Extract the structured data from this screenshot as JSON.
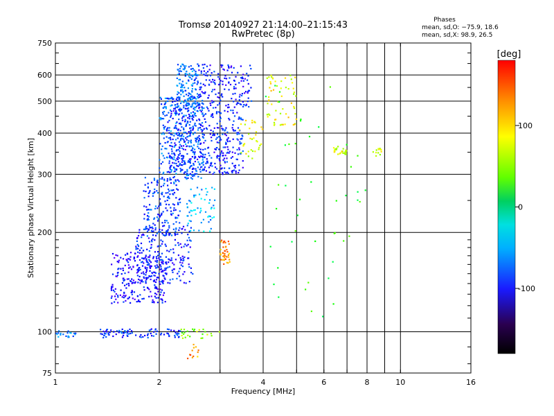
{
  "chart_data": {
    "type": "scatter",
    "title": "Tromsø 20140927 21:14:00–21:15:43",
    "subtitle": "RwPretec (8p)",
    "xlabel": "Frequency [MHz]",
    "ylabel": "Stationary phase Virtual Height [km]",
    "x_scale": "log",
    "y_scale": "log",
    "xlim": [
      1,
      16
    ],
    "ylim": [
      75,
      750
    ],
    "x_ticks": [
      1,
      2,
      4,
      6,
      8,
      10,
      16
    ],
    "x_minor_ticks": [
      3,
      5,
      7,
      9
    ],
    "y_ticks": [
      75,
      100,
      200,
      300,
      400,
      500,
      600,
      750
    ],
    "grid": true,
    "phases_box": {
      "title": "Phases",
      "line_o": "mean, sd,O: −75.9, 18.6",
      "line_x": "mean, sd,X:  98.9, 26.5"
    },
    "colorbar": {
      "label": "[deg]",
      "range": [
        -180,
        180
      ],
      "ticks": [
        -100,
        0,
        100
      ]
    },
    "series": [
      {
        "clusters": [
          {
            "x": [
              1.45,
              2.1
            ],
            "y": [
              122,
              175
            ],
            "phase": -105,
            "n": 260
          },
          {
            "x": [
              1.7,
              2.5
            ],
            "y": [
              140,
              210
            ],
            "phase": -95,
            "n": 200
          },
          {
            "x": [
              1.8,
              2.3
            ],
            "y": [
              195,
              295
            ],
            "phase": -85,
            "n": 180
          },
          {
            "x": [
              2.0,
              2.7
            ],
            "y": [
              290,
              520
            ],
            "phase": -75,
            "n": 320
          },
          {
            "x": [
              2.1,
              3.5
            ],
            "y": [
              300,
              480
            ],
            "phase": -95,
            "n": 420
          },
          {
            "x": [
              2.25,
              2.6
            ],
            "y": [
              480,
              650
            ],
            "phase": -70,
            "n": 130
          },
          {
            "x": [
              2.6,
              3.7
            ],
            "y": [
              480,
              650
            ],
            "phase": -100,
            "n": 160
          },
          {
            "x": [
              2.4,
              2.9
            ],
            "y": [
              200,
              280
            ],
            "phase": -50,
            "n": 60
          },
          {
            "x": [
              1.0,
              1.15
            ],
            "y": [
              96,
              101
            ],
            "phase": -70,
            "n": 20
          },
          {
            "x": [
              1.35,
              2.3
            ],
            "y": [
              96,
              102
            ],
            "phase": -90,
            "n": 90
          },
          {
            "x": [
              2.3,
              3.0
            ],
            "y": [
              95,
              102
            ],
            "phase": 80,
            "n": 25
          },
          {
            "x": [
              2.4,
              2.6
            ],
            "y": [
              82,
              92
            ],
            "phase": 140,
            "n": 12
          },
          {
            "x": [
              3.0,
              3.2
            ],
            "y": [
              160,
              190
            ],
            "phase": 140,
            "n": 40
          },
          {
            "x": [
              3.4,
              4.0
            ],
            "y": [
              330,
              440
            ],
            "phase": 100,
            "n": 35
          },
          {
            "x": [
              4.1,
              5.0
            ],
            "y": [
              420,
              600
            ],
            "phase": 105,
            "n": 60
          },
          {
            "x": [
              6.3,
              7.0
            ],
            "y": [
              345,
              365
            ],
            "phase": 100,
            "n": 30
          },
          {
            "x": [
              8.3,
              8.8
            ],
            "y": [
              340,
              360
            ],
            "phase": 95,
            "n": 12
          },
          {
            "x": [
              4.0,
              8.0
            ],
            "y": [
              110,
              600
            ],
            "phase": 40,
            "n": 45
          }
        ]
      }
    ]
  }
}
